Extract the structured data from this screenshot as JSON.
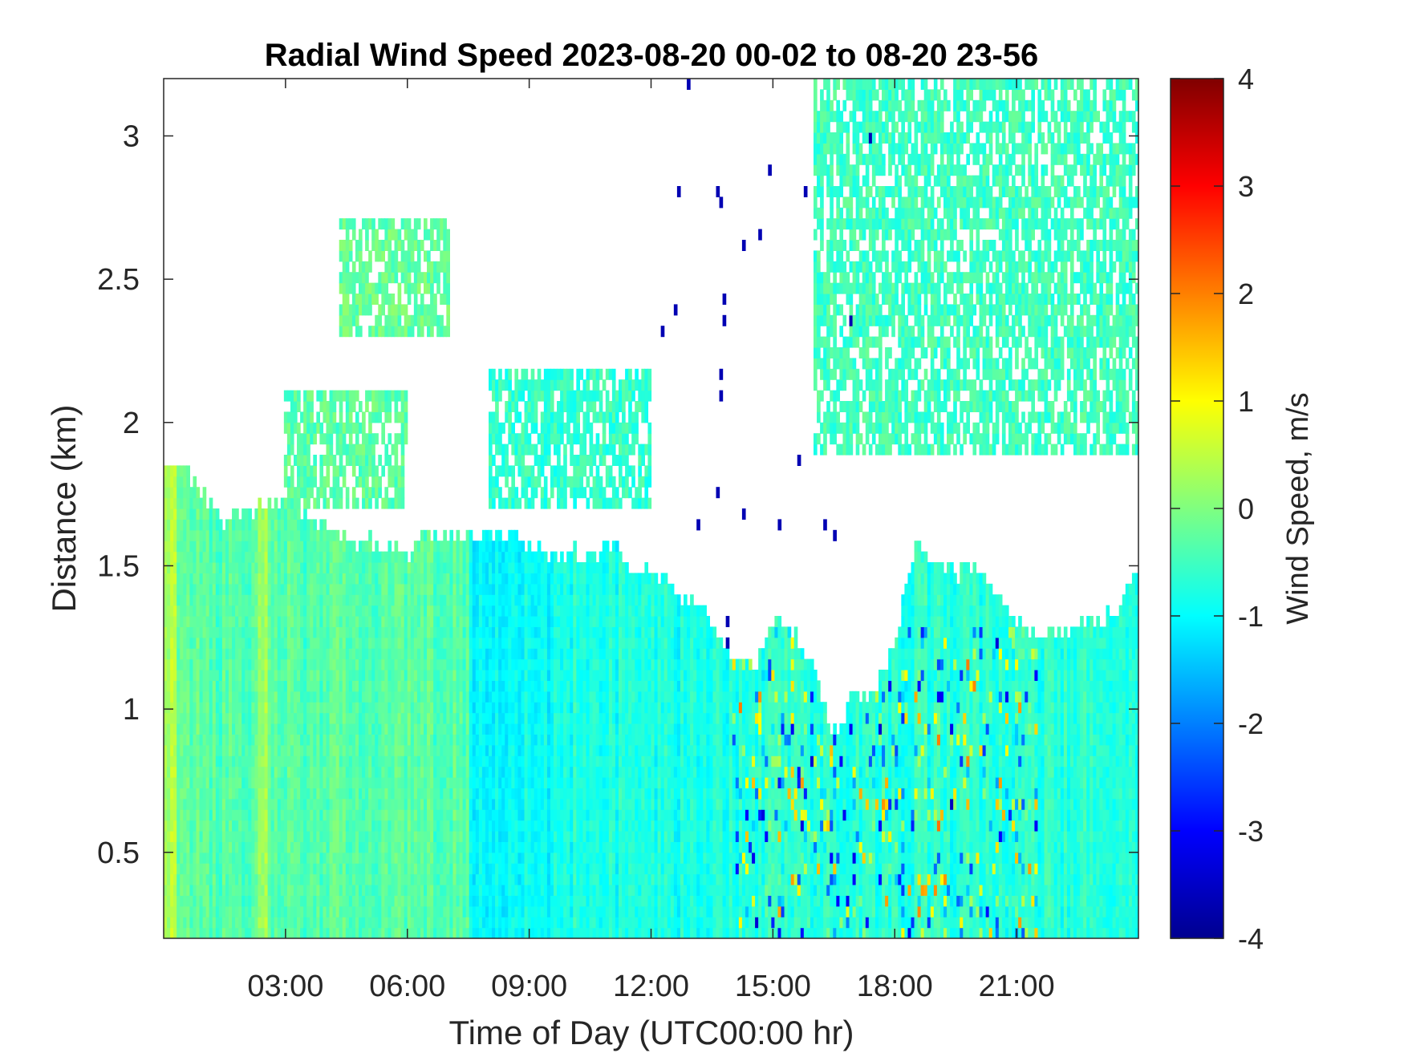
{
  "chart_data": {
    "type": "heatmap",
    "title": "Radial Wind Speed 2023-08-20 00-02 to 08-20 23-56",
    "xlabel": "Time of Day (UTC00:00 hr)",
    "ylabel": "Distance (km)",
    "colorbar_label": "Wind Speed, m/s",
    "xlim_hours": [
      0.0,
      24.0
    ],
    "ylim_km": [
      0.2,
      3.2
    ],
    "clim": [
      -4,
      4
    ],
    "colormap": "jet",
    "x_ticks": [
      {
        "value": 3,
        "label": "03:00"
      },
      {
        "value": 6,
        "label": "06:00"
      },
      {
        "value": 9,
        "label": "09:00"
      },
      {
        "value": 12,
        "label": "12:00"
      },
      {
        "value": 15,
        "label": "15:00"
      },
      {
        "value": 18,
        "label": "18:00"
      },
      {
        "value": 21,
        "label": "21:00"
      }
    ],
    "y_ticks": [
      {
        "value": 0.5,
        "label": "0.5"
      },
      {
        "value": 1,
        "label": "1"
      },
      {
        "value": 1.5,
        "label": "1.5"
      },
      {
        "value": 2,
        "label": "2"
      },
      {
        "value": 2.5,
        "label": "2.5"
      },
      {
        "value": 3,
        "label": "3"
      }
    ],
    "colorbar_ticks": [
      {
        "value": 4,
        "label": "4"
      },
      {
        "value": 3,
        "label": "3"
      },
      {
        "value": 2,
        "label": "2"
      },
      {
        "value": 1,
        "label": "1"
      },
      {
        "value": 0,
        "label": "0"
      },
      {
        "value": -1,
        "label": "-1"
      },
      {
        "value": -2,
        "label": "-2"
      },
      {
        "value": -3,
        "label": "-3"
      },
      {
        "value": -4,
        "label": "-4"
      }
    ],
    "data_top_km": {
      "hours": [
        0,
        0.5,
        1,
        1.5,
        2,
        2.5,
        3,
        3.5,
        4,
        4.5,
        5,
        5.5,
        6,
        6.5,
        7,
        7.5,
        8,
        8.5,
        9,
        9.5,
        10,
        10.5,
        11,
        11.5,
        12,
        12.5,
        13,
        13.5,
        14,
        14.5,
        15,
        15.5,
        16,
        16.5,
        17,
        17.5,
        18,
        18.5,
        19,
        19.5,
        20,
        20.5,
        21,
        21.5,
        22,
        22.5,
        23,
        23.5,
        24
      ],
      "values": [
        1.85,
        1.85,
        1.75,
        1.65,
        1.7,
        1.72,
        1.7,
        1.68,
        1.62,
        1.58,
        1.6,
        1.55,
        1.55,
        1.6,
        1.6,
        1.6,
        1.62,
        1.6,
        1.58,
        1.55,
        1.55,
        1.52,
        1.58,
        1.5,
        1.5,
        1.42,
        1.38,
        1.3,
        1.2,
        1.15,
        1.3,
        1.28,
        1.15,
        0.9,
        1.05,
        1.05,
        1.25,
        1.55,
        1.5,
        1.48,
        1.48,
        1.4,
        1.3,
        1.28,
        1.28,
        1.28,
        1.3,
        1.35,
        1.5
      ]
    },
    "upper_echoes": [
      {
        "time_range_hours": [
          3.0,
          6.0
        ],
        "distance_range_km": [
          1.7,
          2.1
        ],
        "mean_speed_ms": -0.3
      },
      {
        "time_range_hours": [
          4.3,
          7.0
        ],
        "distance_range_km": [
          2.3,
          2.7
        ],
        "mean_speed_ms": -0.2
      },
      {
        "time_range_hours": [
          8.0,
          12.0
        ],
        "distance_range_km": [
          1.7,
          2.2
        ],
        "mean_speed_ms": -0.6
      },
      {
        "time_range_hours": [
          16.0,
          24.0
        ],
        "distance_range_km": [
          1.9,
          3.2
        ],
        "mean_speed_ms": -0.5
      }
    ],
    "notes_for_render": "Values range ~ -1.2 to 0.3 m/s in the morning, with stronger mixed -3..+3 m/s turbulence between 14:00 and 21:00 below 1.3 km"
  }
}
